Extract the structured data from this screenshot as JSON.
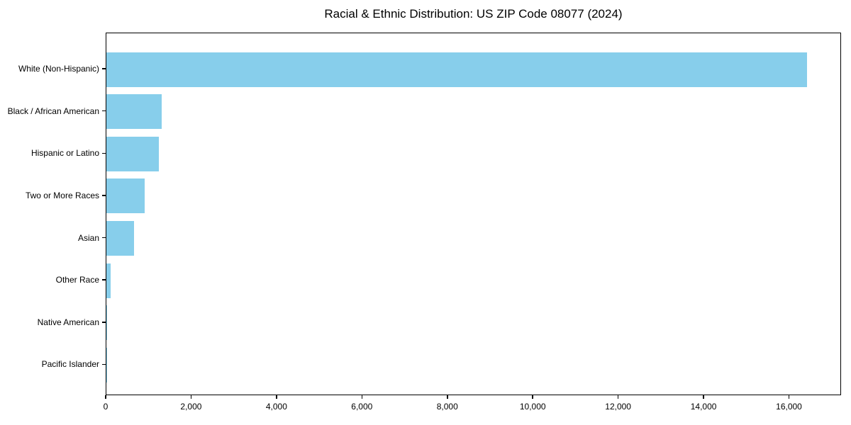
{
  "chart_data": {
    "type": "bar",
    "orientation": "horizontal",
    "title": "Racial & Ethnic Distribution: US ZIP Code 08077 (2024)",
    "categories": [
      "White (Non-Hispanic)",
      "Black / African American",
      "Hispanic or Latino",
      "Two or More Races",
      "Asian",
      "Other Race",
      "Native American",
      "Pacific Islander"
    ],
    "values": [
      16400,
      1290,
      1230,
      900,
      640,
      100,
      15,
      5
    ],
    "bar_color": "#87CEEB",
    "xlabel": "",
    "ylabel": "",
    "xlim": [
      0,
      17220
    ],
    "xtick_values": [
      0,
      2000,
      4000,
      6000,
      8000,
      10000,
      12000,
      14000,
      16000
    ],
    "xtick_labels": [
      "0",
      "2,000",
      "4,000",
      "6,000",
      "8,000",
      "10,000",
      "12,000",
      "14,000",
      "16,000"
    ],
    "grid": false,
    "legend": "none",
    "frame": "full-box"
  }
}
